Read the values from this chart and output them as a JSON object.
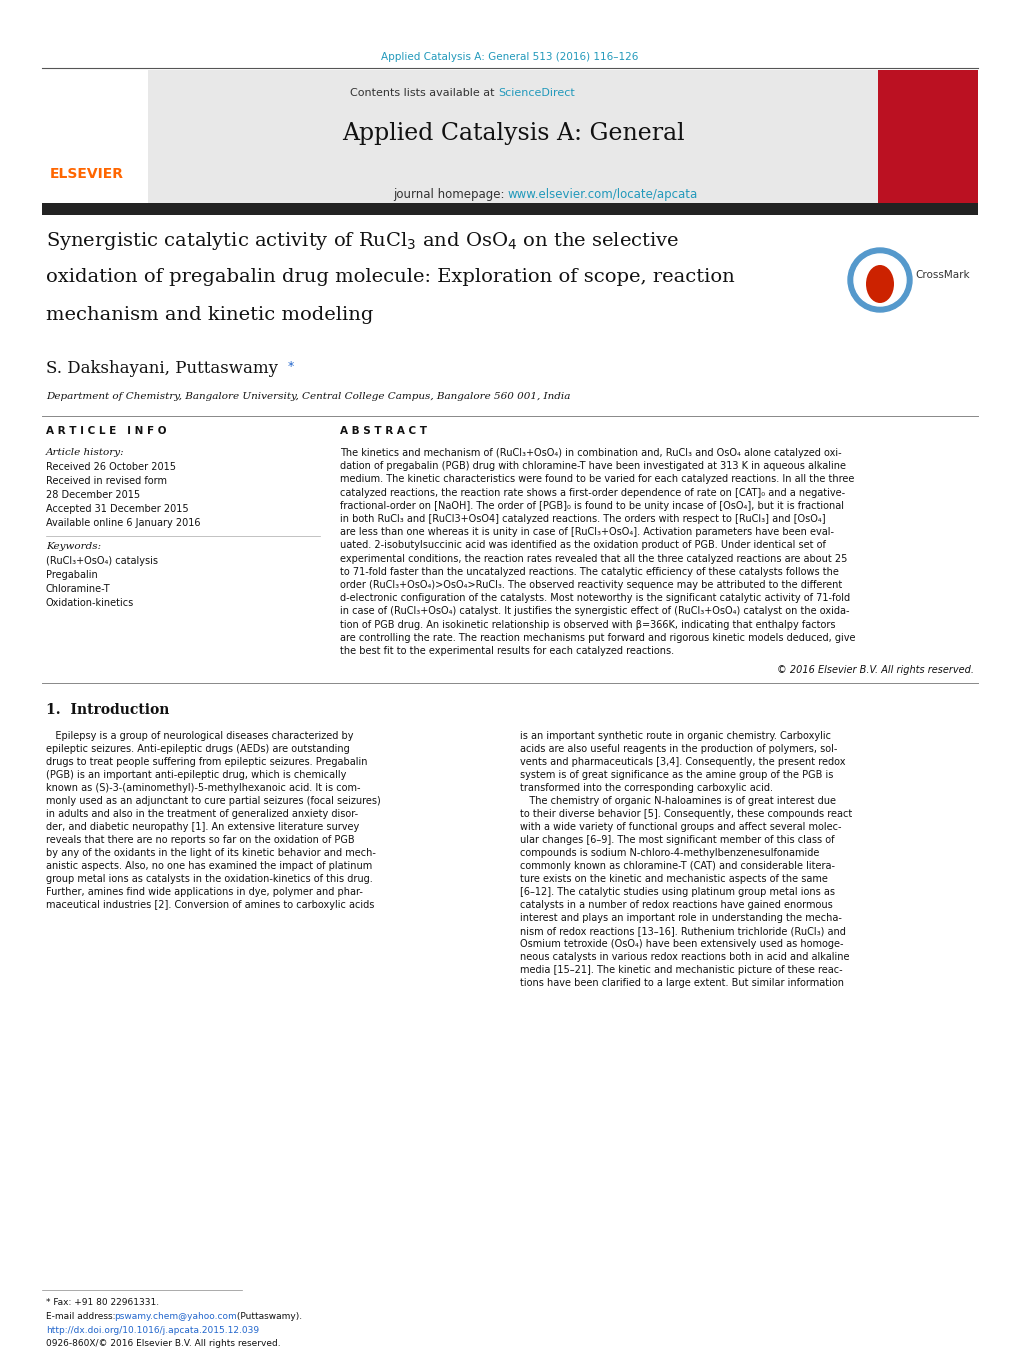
{
  "page_width": 10.2,
  "page_height": 13.51,
  "background": "#ffffff",
  "top_citation": "Applied Catalysis A: General 513 (2016) 116–126",
  "top_citation_color": "#2299bb",
  "contents_text": "Contents lists available at ",
  "sciencedirect_text": "ScienceDirect",
  "sciencedirect_color": "#2299bb",
  "journal_title": "Applied Catalysis A: General",
  "journal_homepage_prefix": "journal homepage: ",
  "journal_url": "www.elsevier.com/locate/apcata",
  "journal_url_color": "#2299bb",
  "header_bg": "#e8e8e8",
  "dark_bar_color": "#222222",
  "red_cover_color": "#bb1122",
  "elsevier_color": "#ff6600",
  "article_title": "Synergistic catalytic activity of RuCl$_3$ and OsO$_4$ on the selective\noxidation of pregabalin drug molecule: Exploration of scope, reaction\nmechanism and kinetic modeling",
  "authors": "S. Dakshayani, Puttaswamy*",
  "affiliation": "Department of Chemistry, Bangalore University, Central College Campus, Bangalore 560 001, India",
  "article_info_title": "A R T I C L E   I N F O",
  "abstract_title": "A B S T R A C T",
  "article_history_label": "Article history:",
  "history_lines": [
    "Received 26 October 2015",
    "Received in revised form",
    "28 December 2015",
    "Accepted 31 December 2015",
    "Available online 6 January 2016"
  ],
  "keywords_label": "Keywords:",
  "keywords": [
    "(RuCl₃+OsO₄) catalysis",
    "Pregabalin",
    "Chloramine-T",
    "Oxidation-kinetics"
  ],
  "abstract_lines": [
    "The kinetics and mechanism of (RuCl₃+OsO₄) in combination and, RuCl₃ and OsO₄ alone catalyzed oxi-",
    "dation of pregabalin (PGB) drug with chloramine-T have been investigated at 313 K in aqueous alkaline",
    "medium. The kinetic characteristics were found to be varied for each catalyzed reactions. In all the three",
    "catalyzed reactions, the reaction rate shows a first-order dependence of rate on [CAT]₀ and a negative-",
    "fractional-order on [NaOH]. The order of [PGB]₀ is found to be unity incase of [OsO₄], but it is fractional",
    "in both RuCl₃ and [RuCl3+OsO4] catalyzed reactions. The orders with respect to [RuCl₃] and [OsO₄]",
    "are less than one whereas it is unity in case of [RuCl₃+OsO₄]. Activation parameters have been eval-",
    "uated. 2-isobutylsuccinic acid was identified as the oxidation product of PGB. Under identical set of",
    "experimental conditions, the reaction rates revealed that all the three catalyzed reactions are about 25",
    "to 71-fold faster than the uncatalyzed reactions. The catalytic efficiency of these catalysts follows the",
    "order (RuCl₃+OsO₄)>OsO₄>RuCl₃. The observed reactivity sequence may be attributed to the different",
    "d-electronic configuration of the catalysts. Most noteworthy is the significant catalytic activity of 71-fold",
    "in case of (RuCl₃+OsO₄) catalyst. It justifies the synergistic effect of (RuCl₃+OsO₄) catalyst on the oxida-",
    "tion of PGB drug. An isokinetic relationship is observed with β=366K, indicating that enthalpy factors",
    "are controlling the rate. The reaction mechanisms put forward and rigorous kinetic models deduced, give",
    "the best fit to the experimental results for each catalyzed reactions."
  ],
  "copyright": "© 2016 Elsevier B.V. All rights reserved.",
  "intro_heading": "1.  Introduction",
  "intro_col1_lines": [
    "   Epilepsy is a group of neurological diseases characterized by",
    "epileptic seizures. Anti-epileptic drugs (AEDs) are outstanding",
    "drugs to treat people suffering from epileptic seizures. Pregabalin",
    "(PGB) is an important anti-epileptic drug, which is chemically",
    "known as (S)-3-(aminomethyl)-5-methylhexanoic acid. It is com-",
    "monly used as an adjunctant to cure partial seizures (focal seizures)",
    "in adults and also in the treatment of generalized anxiety disor-",
    "der, and diabetic neuropathy [1]. An extensive literature survey",
    "reveals that there are no reports so far on the oxidation of PGB",
    "by any of the oxidants in the light of its kinetic behavior and mech-",
    "anistic aspects. Also, no one has examined the impact of platinum",
    "group metal ions as catalysts in the oxidation-kinetics of this drug.",
    "Further, amines find wide applications in dye, polymer and phar-",
    "maceutical industries [2]. Conversion of amines to carboxylic acids"
  ],
  "intro_col2_lines": [
    "is an important synthetic route in organic chemistry. Carboxylic",
    "acids are also useful reagents in the production of polymers, sol-",
    "vents and pharmaceuticals [3,4]. Consequently, the present redox",
    "system is of great significance as the amine group of the PGB is",
    "transformed into the corresponding carboxylic acid.",
    "   The chemistry of organic N-haloamines is of great interest due",
    "to their diverse behavior [5]. Consequently, these compounds react",
    "with a wide variety of functional groups and affect several molec-",
    "ular changes [6–9]. The most significant member of this class of",
    "compounds is sodium N-chloro-4-methylbenzenesulfonamide",
    "commonly known as chloramine-T (CAT) and considerable litera-",
    "ture exists on the kinetic and mechanistic aspects of the same",
    "[6–12]. The catalytic studies using platinum group metal ions as",
    "catalysts in a number of redox reactions have gained enormous",
    "interest and plays an important role in understanding the mecha-",
    "nism of redox reactions [13–16]. Ruthenium trichloride (RuCl₃) and",
    "Osmium tetroxide (OsO₄) have been extensively used as homoge-",
    "neous catalysts in various redox reactions both in acid and alkaline",
    "media [15–21]. The kinetic and mechanistic picture of these reac-",
    "tions have been clarified to a large extent. But similar information"
  ],
  "footnote_star": "* Fax: +91 80 22961331.",
  "footnote_email_prefix": "E-mail address: ",
  "footnote_email": "pswamy.chem@yahoo.com",
  "footnote_email_suffix": " (Puttaswamy).",
  "footnote_email_color": "#2266cc",
  "doi_text": "http://dx.doi.org/10.1016/j.apcata.2015.12.039",
  "doi_color": "#2266cc",
  "issn_text": "0926-860X/© 2016 Elsevier B.V. All rights reserved."
}
